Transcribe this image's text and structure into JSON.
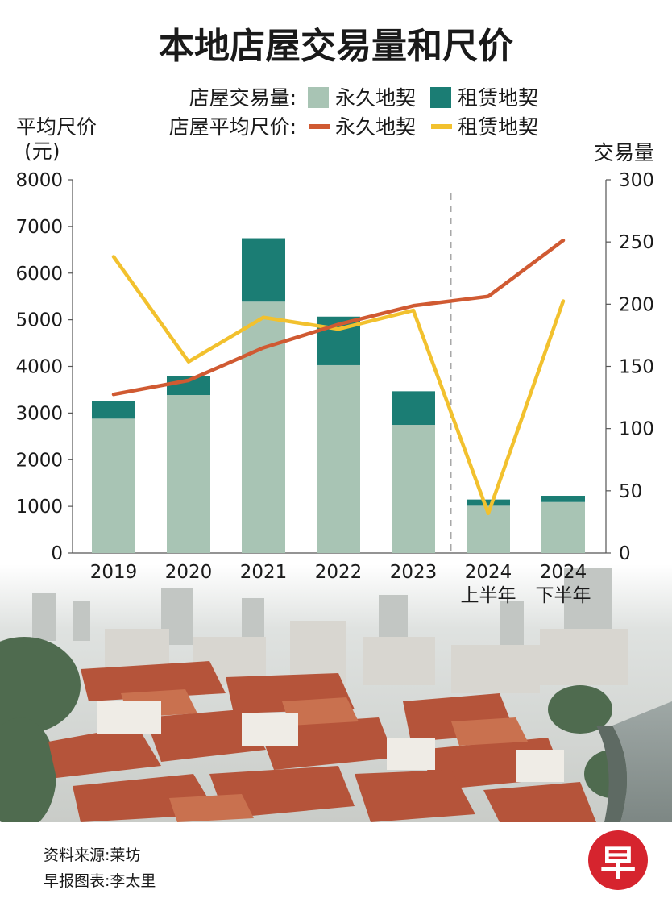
{
  "chart_data": {
    "type": "bar",
    "title": "本地店屋交易量和尺价",
    "legend": {
      "bar_group_label": "店屋交易量:",
      "line_group_label": "店屋平均尺价:",
      "freehold": "永久地契",
      "leasehold": "租赁地契"
    },
    "ylabel_left": "平均尺价",
    "ylabel_left_unit": "(元)",
    "ylabel_right": "交易量",
    "ylim_left": [
      0,
      8000
    ],
    "ylim_right": [
      0,
      300
    ],
    "yticks_left": [
      "0",
      "1000",
      "2000",
      "3000",
      "4000",
      "5000",
      "6000",
      "7000",
      "8000"
    ],
    "yticks_right": [
      "0",
      "50",
      "100",
      "150",
      "200",
      "250",
      "300"
    ],
    "categories": [
      {
        "year": "2019",
        "sub": ""
      },
      {
        "year": "2020",
        "sub": ""
      },
      {
        "year": "2021",
        "sub": ""
      },
      {
        "year": "2022",
        "sub": ""
      },
      {
        "year": "2023",
        "sub": ""
      },
      {
        "year": "2024",
        "sub": "上半年"
      },
      {
        "year": "2024",
        "sub": "下半年"
      }
    ],
    "bars": {
      "freehold_volume": [
        108,
        127,
        202,
        151,
        103,
        38,
        41
      ],
      "leasehold_volume": [
        14,
        15,
        51,
        39,
        27,
        5,
        5
      ]
    },
    "lines": {
      "freehold_price": [
        3400,
        3700,
        4400,
        4900,
        5300,
        5500,
        6700
      ],
      "leasehold_price": [
        6350,
        4100,
        5050,
        4800,
        5200,
        850,
        5400
      ]
    },
    "divider_after_index": 4
  },
  "colors": {
    "freehold_bar": "#a8c4b4",
    "leasehold_bar": "#1b7d74",
    "freehold_line": "#d05a32",
    "leasehold_line": "#f2c12e"
  },
  "footer": {
    "source": "资料来源:莱坊",
    "credit": "早报图表:李太里",
    "logo_char": "早"
  }
}
